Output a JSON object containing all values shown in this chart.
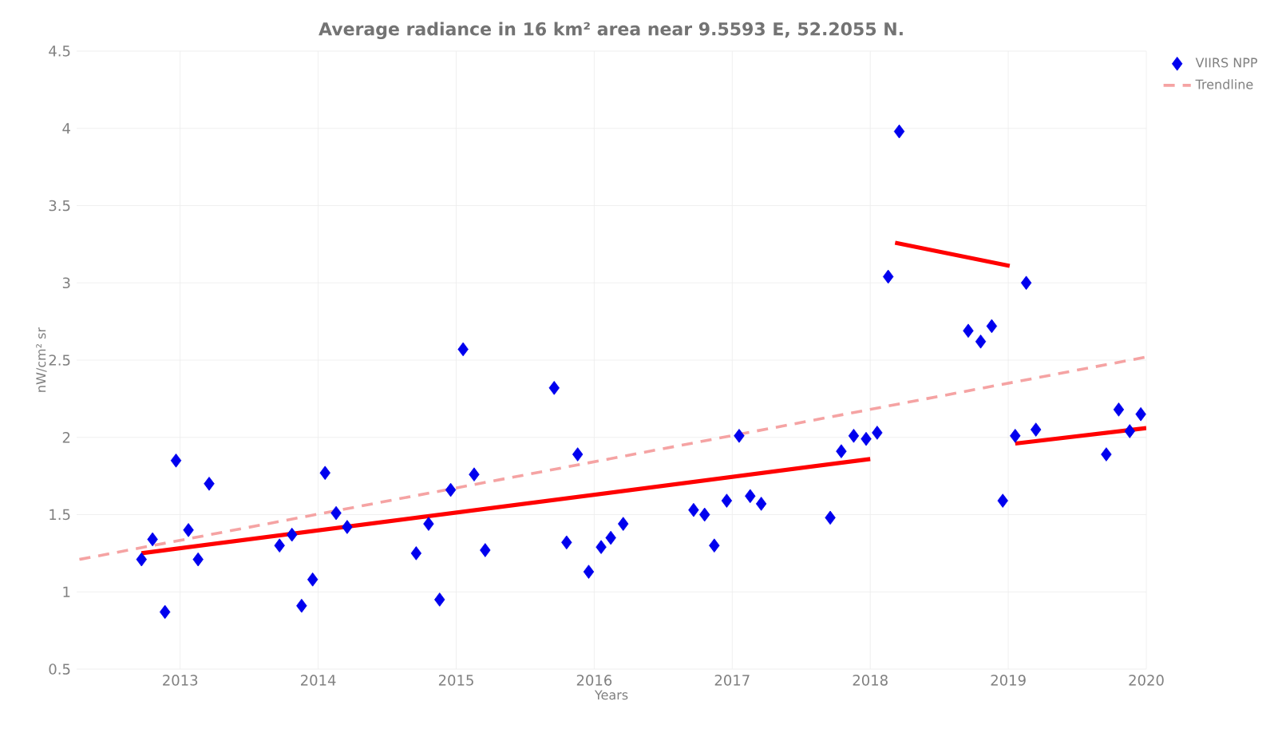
{
  "chart_data": {
    "type": "scatter",
    "title": "Average radiance in 16 km² area near 9.5593 E, 52.2055 N.",
    "xlabel": "Years",
    "ylabel": "nW/cm² sr",
    "xlim": [
      2012.25,
      2020
    ],
    "xticks": [
      2013,
      2014,
      2015,
      2016,
      2017,
      2018,
      2019,
      2020
    ],
    "ylim": [
      0.5,
      4.5
    ],
    "yticks": [
      0.5,
      1,
      1.5,
      2,
      2.5,
      3,
      3.5,
      4,
      4.5
    ],
    "grid": true,
    "legend": "top right",
    "marker": "diamond",
    "series": [
      {
        "name": "VIIRS NPP",
        "color": "#0000ee",
        "x": [
          2012.72,
          2012.8,
          2012.89,
          2012.97,
          2013.06,
          2013.13,
          2013.21,
          2013.72,
          2013.81,
          2013.88,
          2013.96,
          2014.05,
          2014.13,
          2014.21,
          2014.71,
          2014.8,
          2014.88,
          2014.96,
          2015.05,
          2015.13,
          2015.21,
          2015.71,
          2015.8,
          2015.88,
          2015.96,
          2016.05,
          2016.12,
          2016.21,
          2016.72,
          2016.8,
          2016.87,
          2016.96,
          2017.05,
          2017.13,
          2017.21,
          2017.71,
          2017.79,
          2017.88,
          2017.97,
          2018.05,
          2018.13,
          2018.21,
          2018.71,
          2018.8,
          2018.88,
          2018.96,
          2019.05,
          2019.13,
          2019.2,
          2019.71,
          2019.8,
          2019.88,
          2019.96
        ],
        "values": [
          1.21,
          1.34,
          0.87,
          1.85,
          1.4,
          1.21,
          1.7,
          1.3,
          1.37,
          0.91,
          1.08,
          1.77,
          1.51,
          1.42,
          1.25,
          1.44,
          0.95,
          1.66,
          2.57,
          1.76,
          1.27,
          2.32,
          1.32,
          1.89,
          1.13,
          1.29,
          1.35,
          1.44,
          1.53,
          1.5,
          1.3,
          1.59,
          2.01,
          1.62,
          1.57,
          1.48,
          1.91,
          2.01,
          1.99,
          2.03,
          3.04,
          3.98,
          2.69,
          2.62,
          2.72,
          1.59,
          2.01,
          3.0,
          2.05,
          1.89,
          2.18,
          2.04,
          2.15
        ]
      },
      {
        "name": "Trendline",
        "type": "line",
        "line_style": "dashed",
        "marker": "none",
        "color": "#f5a3a3",
        "x": [
          2012.27,
          2020.0
        ],
        "values": [
          1.21,
          2.52
        ]
      },
      {
        "type": "line",
        "line_style": "solid",
        "marker": "none",
        "color": "#ff0000",
        "x": [
          2012.72,
          2018.0
        ],
        "values": [
          1.25,
          1.86
        ]
      },
      {
        "type": "line",
        "line_style": "solid",
        "marker": "none",
        "color": "#ff0000",
        "x": [
          2018.18,
          2019.01
        ],
        "values": [
          3.26,
          3.11
        ]
      },
      {
        "type": "line",
        "line_style": "solid",
        "marker": "none",
        "color": "#ff0000",
        "x": [
          2019.05,
          2020.0
        ],
        "values": [
          1.96,
          2.06
        ]
      }
    ]
  }
}
